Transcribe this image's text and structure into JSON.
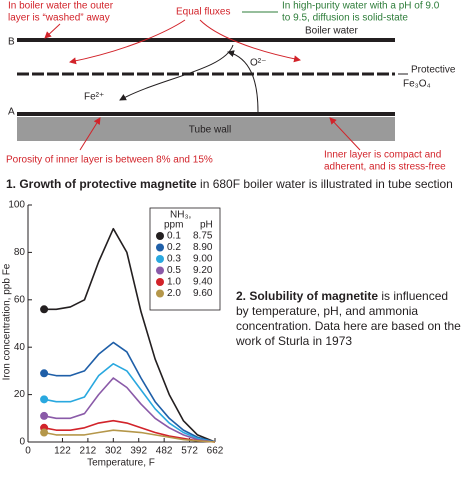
{
  "diagram": {
    "note_outer": [
      "In boiler water the outer",
      "layer is “washed” away"
    ],
    "note_fluxes": "Equal fluxes",
    "note_purity": [
      "In high-purity water with a pH of 9.0",
      "to 9.5, diffusion is solid-state"
    ],
    "label_b": "B",
    "label_a": "A",
    "boiler_water": "Boiler water",
    "protective": [
      "Protective",
      "Fe₃O₄"
    ],
    "oxygen_ion": "O²⁻",
    "iron_ion": "Fe²⁺",
    "tube_wall": "Tube wall",
    "note_porosity": "Porosity of inner layer is between 8% and 15%",
    "note_inner": [
      "Inner layer is compact and",
      "adherent, and is stress-free"
    ],
    "caption_1_bold": "1. Growth of protective magnetite",
    "caption_1_rest": " in 680F boiler water is illustrated in tube section",
    "caption_2_bold": "2. Solubility of magnetite",
    "caption_2_rest": " is influenced by temperature, pH, and ammonia concentration. Data here are based on the work of Sturla in 1973"
  },
  "chart_data": {
    "type": "line",
    "x_label": "Temperature, F",
    "y_label": "Iron concentration, ppb Fe",
    "legend_title": [
      "NH₃,",
      "ppm",
      "pH"
    ],
    "x": [
      57,
      100,
      150,
      200,
      250,
      302,
      350,
      400,
      450,
      500,
      550,
      600,
      662
    ],
    "xlim": [
      0,
      662
    ],
    "xticks": [
      0,
      122,
      212,
      302,
      392,
      482,
      572,
      662
    ],
    "ylim": [
      0,
      100
    ],
    "yticks": [
      0,
      20,
      40,
      60,
      80,
      100
    ],
    "series": [
      {
        "name": "0.1",
        "ph": "8.75",
        "color": "#231f20",
        "values": [
          56,
          56,
          57,
          60,
          76,
          90,
          80,
          55,
          35,
          20,
          9,
          3,
          0
        ]
      },
      {
        "name": "0.2",
        "ph": "8.90",
        "color": "#1f5fa8",
        "values": [
          29,
          28,
          28,
          30,
          37,
          42,
          38,
          27,
          17,
          10,
          5,
          2,
          0
        ]
      },
      {
        "name": "0.3",
        "ph": "9.00",
        "color": "#29a8df",
        "values": [
          18,
          17,
          17,
          19,
          28,
          33,
          30,
          22,
          14,
          8,
          4,
          1.5,
          0
        ]
      },
      {
        "name": "0.5",
        "ph": "9.20",
        "color": "#8a5aa8",
        "values": [
          11,
          10,
          10,
          12,
          20,
          27,
          23,
          16,
          10,
          6,
          3,
          1,
          0
        ]
      },
      {
        "name": "1.0",
        "ph": "9.40",
        "color": "#d2232a",
        "values": [
          6,
          5,
          5,
          6,
          8,
          9,
          8,
          6,
          4,
          2.5,
          1.5,
          0.5,
          0
        ]
      },
      {
        "name": "2.0",
        "ph": "9.60",
        "color": "#b5974a",
        "values": [
          4,
          3,
          3,
          3,
          4,
          5,
          4.5,
          4,
          3,
          2,
          1,
          0.5,
          0
        ]
      }
    ]
  }
}
